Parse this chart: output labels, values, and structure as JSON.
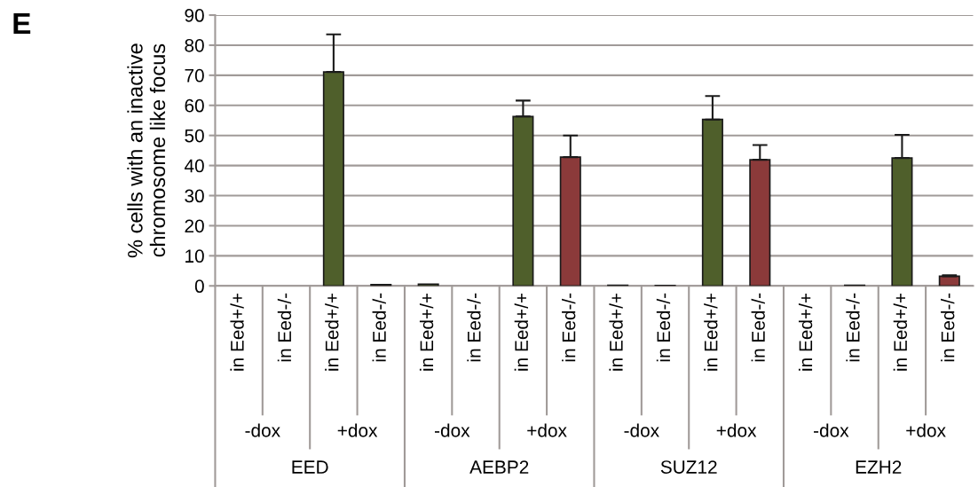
{
  "chart_data": {
    "type": "bar",
    "ylabel": "% cells with an inactive\nchromosome like focus",
    "annotations": [
      "E",
      "-dox",
      "+dox",
      "-dox",
      "+dox",
      "-dox",
      "+dox",
      "-dox",
      "+dox",
      "EED",
      "AEBP2",
      "SUZ12",
      "EZH2"
    ],
    "categories": [
      "in Eed+/+",
      "in Eed-/-",
      "in Eed+/+",
      "in Eed-/-",
      "in Eed+/+",
      "in Eed-/-",
      "in Eed+/+",
      "in Eed-/-",
      "in Eed+/+",
      "in Eed-/-",
      "in Eed+/+",
      "in Eed-/-",
      "in Eed+/+",
      "in Eed-/-",
      "in Eed+/+",
      "in Eed-/-"
    ],
    "values": [
      0,
      0,
      71.1,
      0.4,
      0.6,
      0,
      56.3,
      42.8,
      0.2,
      0.1,
      55.3,
      41.9,
      0,
      0.2,
      42.5,
      3.2
    ],
    "colors": [
      "#4f5f2b",
      "#8b3a3a",
      "#4f5f2b",
      "#8b3a3a",
      "#4f5f2b",
      "#8b3a3a",
      "#4f5f2b",
      "#8b3a3a",
      "#4f5f2b",
      "#8b3a3a",
      "#4f5f2b",
      "#8b3a3a",
      "#4f5f2b",
      "#8b3a3a",
      "#4f5f2b",
      "#8b3a3a"
    ],
    "errors": [
      null,
      null,
      [
        71.1,
        83.6
      ],
      null,
      null,
      null,
      [
        56.3,
        61.6
      ],
      [
        42.8,
        50.0
      ],
      null,
      null,
      [
        55.3,
        63.1
      ],
      [
        41.9,
        46.8
      ],
      null,
      null,
      [
        42.5,
        50.2
      ],
      [
        3.2,
        3.5
      ]
    ],
    "ylim": [
      0,
      90
    ],
    "yticks": [
      0,
      10,
      20,
      30,
      40,
      50,
      60,
      70,
      80,
      90
    ],
    "grid": "y"
  }
}
